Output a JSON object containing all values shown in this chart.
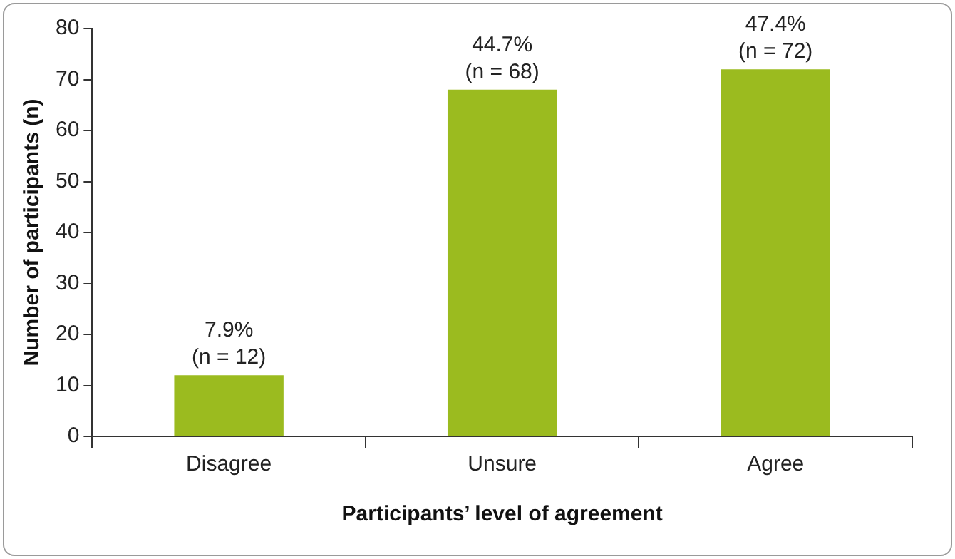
{
  "chart_data": {
    "type": "bar",
    "xlabel": "Participants’ level of agreement",
    "ylabel": "Number of participants (n)",
    "categories": [
      "Disagree",
      "Unsure",
      "Agree"
    ],
    "values": [
      12,
      68,
      72
    ],
    "value_labels": [
      "7.9%\n(n = 12)",
      "44.7%\n(n = 68)",
      "47.4%\n(n = 72)"
    ],
    "color": "#9bbb1f",
    "ylim": [
      0,
      80
    ],
    "yticks": [
      0,
      10,
      20,
      30,
      40,
      50,
      60,
      70,
      80
    ],
    "grid": false,
    "legend": false
  }
}
